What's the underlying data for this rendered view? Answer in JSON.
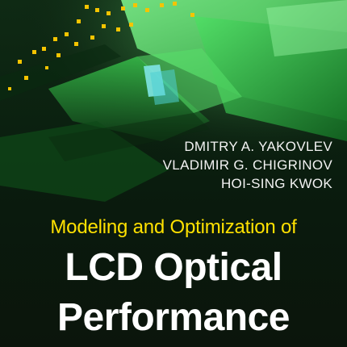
{
  "authors": [
    "DMITRY A. YAKOVLEV",
    "VLADIMIR G. CHIGRINOV",
    "HOI-SING KWOK"
  ],
  "subtitle": "Modeling and Optimization of",
  "title_lines": [
    "LCD Optical",
    "Performance"
  ],
  "colors": {
    "background": "#0b1a0e",
    "accent_green": "#2fd24a",
    "subtitle_yellow": "#ffe100",
    "title_white": "#ffffff",
    "highlight_cyan": "#7fe6e6"
  }
}
